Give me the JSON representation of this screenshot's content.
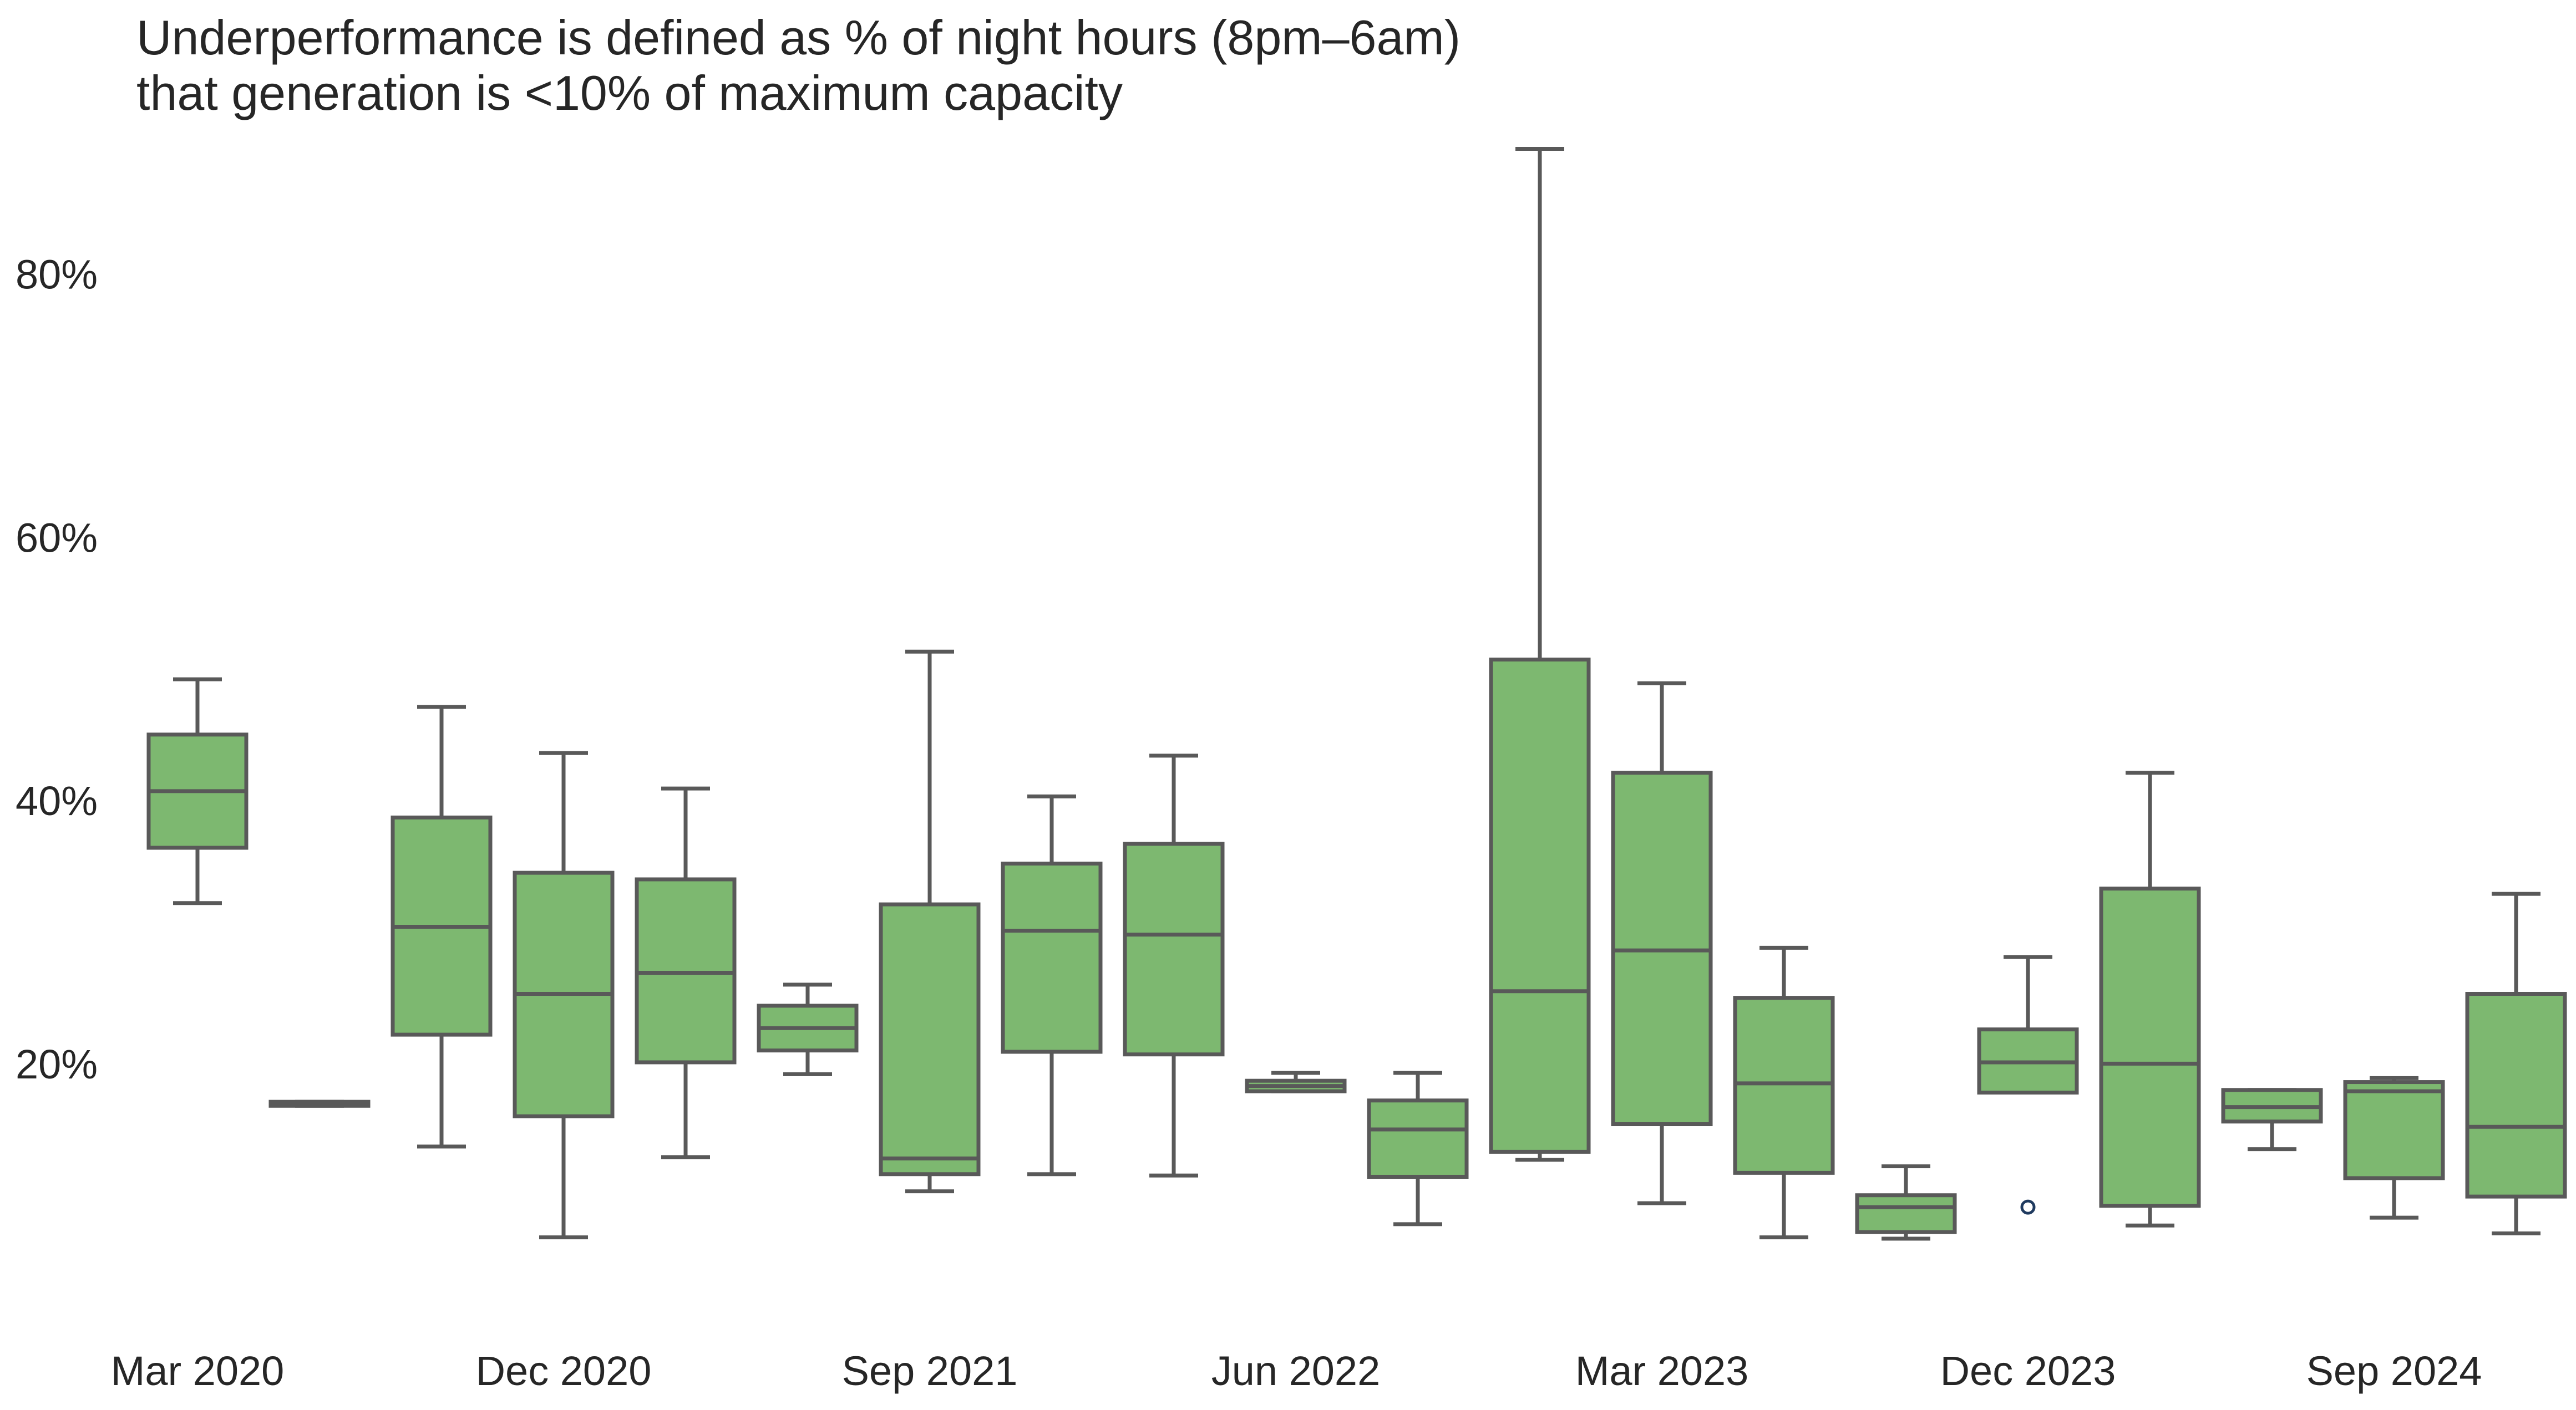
{
  "chart_data": {
    "type": "box",
    "title": "Underperformance is defined as % of night hours (8pm–6am)",
    "subtitle": "that generation is <10% of maximum capacity",
    "xlabel": "",
    "ylabel": "",
    "ylim": [
      3,
      91
    ],
    "y_ticks": [
      20,
      40,
      60,
      80
    ],
    "y_tick_labels": [
      "20%",
      "40%",
      "60%",
      "80%"
    ],
    "x_tick_labels": [
      "Mar 2020",
      "Dec 2020",
      "Sep 2021",
      "Jun 2022",
      "Mar 2023",
      "Dec 2023",
      "Sep 2024"
    ],
    "x_tick_positions": [
      0,
      3,
      6,
      9,
      12,
      15,
      18
    ],
    "grid": false,
    "legend": "none",
    "box_fill_color": "#7db870",
    "box_line_color": "#595959",
    "outlier_color": "#1f3a5f",
    "series": [
      {
        "period": 0,
        "whisker_low": 32.5,
        "q1": 36.7,
        "median": 41.0,
        "q3": 45.3,
        "whisker_high": 49.5,
        "outliers": []
      },
      {
        "period": 1,
        "whisker_low": 17.1,
        "q1": 17.1,
        "median": 17.3,
        "q3": 17.4,
        "whisker_high": 17.4,
        "outliers": []
      },
      {
        "period": 2,
        "whisker_low": 14.0,
        "q1": 22.5,
        "median": 30.7,
        "q3": 39.0,
        "whisker_high": 47.4,
        "outliers": []
      },
      {
        "period": 3,
        "whisker_low": 7.1,
        "q1": 16.3,
        "median": 25.6,
        "q3": 34.8,
        "whisker_high": 43.9,
        "outliers": []
      },
      {
        "period": 4,
        "whisker_low": 13.2,
        "q1": 20.4,
        "median": 27.2,
        "q3": 34.3,
        "whisker_high": 41.2,
        "outliers": []
      },
      {
        "period": 5,
        "whisker_low": 19.5,
        "q1": 21.3,
        "median": 23.0,
        "q3": 24.7,
        "whisker_high": 26.3,
        "outliers": []
      },
      {
        "period": 6,
        "whisker_low": 10.6,
        "q1": 11.9,
        "median": 13.1,
        "q3": 32.4,
        "whisker_high": 51.6,
        "outliers": []
      },
      {
        "period": 7,
        "whisker_low": 11.9,
        "q1": 21.2,
        "median": 30.4,
        "q3": 35.5,
        "whisker_high": 40.6,
        "outliers": []
      },
      {
        "period": 8,
        "whisker_low": 11.8,
        "q1": 21.0,
        "median": 30.1,
        "q3": 37.0,
        "whisker_high": 43.7,
        "outliers": []
      },
      {
        "period": 9,
        "whisker_low": 18.2,
        "q1": 18.2,
        "median": 18.6,
        "q3": 19.0,
        "whisker_high": 19.6,
        "outliers": []
      },
      {
        "period": 10,
        "whisker_low": 8.1,
        "q1": 11.7,
        "median": 15.3,
        "q3": 17.5,
        "whisker_high": 19.6,
        "outliers": []
      },
      {
        "period": 11,
        "whisker_low": 13.0,
        "q1": 13.6,
        "median": 25.8,
        "q3": 51.0,
        "whisker_high": 89.8,
        "outliers": []
      },
      {
        "period": 12,
        "whisker_low": 9.7,
        "q1": 15.7,
        "median": 28.9,
        "q3": 42.4,
        "whisker_high": 49.2,
        "outliers": []
      },
      {
        "period": 13,
        "whisker_low": 7.1,
        "q1": 12.0,
        "median": 18.8,
        "q3": 25.3,
        "whisker_high": 29.1,
        "outliers": []
      },
      {
        "period": 14,
        "whisker_low": 7.0,
        "q1": 7.5,
        "median": 9.4,
        "q3": 10.3,
        "whisker_high": 12.5,
        "outliers": []
      },
      {
        "period": 15,
        "whisker_low": 18.1,
        "q1": 18.1,
        "median": 20.4,
        "q3": 22.9,
        "whisker_high": 28.4,
        "outliers": [
          9.4
        ]
      },
      {
        "period": 16,
        "whisker_low": 8.0,
        "q1": 9.5,
        "median": 20.3,
        "q3": 33.6,
        "whisker_high": 42.4,
        "outliers": []
      },
      {
        "period": 17,
        "whisker_low": 13.8,
        "q1": 15.9,
        "median": 17.0,
        "q3": 18.3,
        "whisker_high": 18.3,
        "outliers": []
      },
      {
        "period": 18,
        "whisker_low": 8.6,
        "q1": 11.6,
        "median": 18.2,
        "q3": 18.9,
        "whisker_high": 19.2,
        "outliers": []
      },
      {
        "period": 19,
        "whisker_low": 7.4,
        "q1": 10.2,
        "median": 15.5,
        "q3": 25.6,
        "whisker_high": 33.2,
        "outliers": []
      }
    ]
  }
}
